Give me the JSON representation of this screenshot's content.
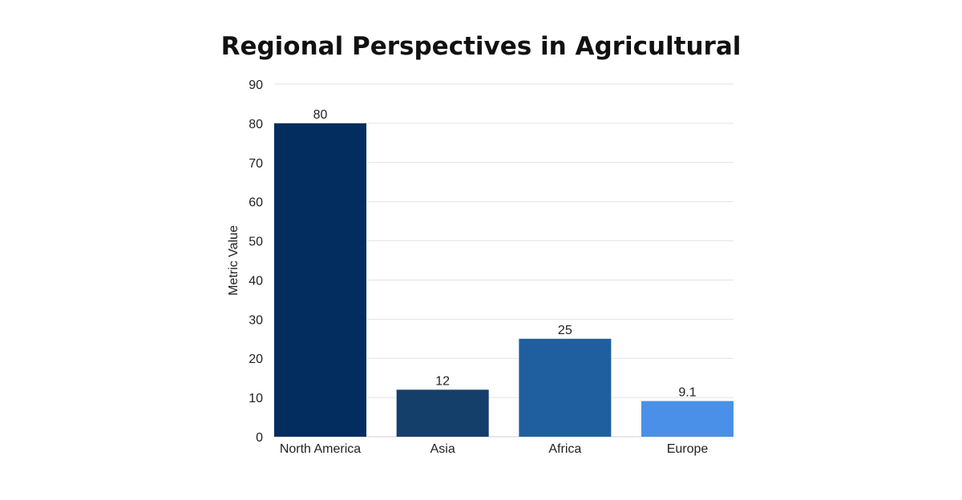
{
  "chart_data": {
    "type": "bar",
    "title": "Regional Perspectives in Agricultural",
    "xlabel": "",
    "ylabel": "Metric Value",
    "categories": [
      "North America",
      "Asia",
      "Africa",
      "Europe"
    ],
    "values": [
      80,
      12,
      25,
      9.1
    ],
    "data_labels": [
      "80",
      "12",
      "25",
      "9.1"
    ],
    "colors": [
      "#022d5e",
      "#153f6b",
      "#1f5f9f",
      "#4a90e8"
    ],
    "ylim": [
      0,
      90
    ],
    "yticks": [
      0,
      10,
      20,
      30,
      40,
      50,
      60,
      70,
      80,
      90
    ],
    "grid": true,
    "legend": "none"
  }
}
